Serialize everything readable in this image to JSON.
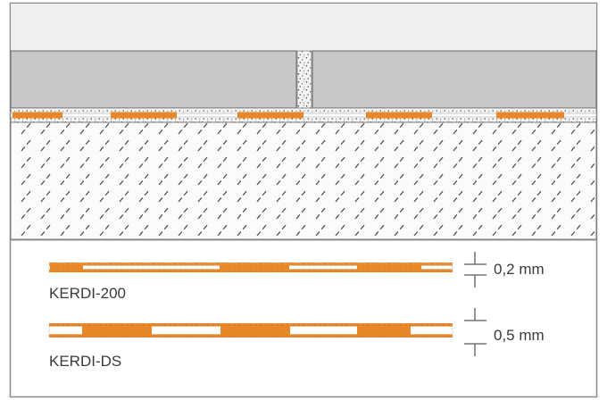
{
  "colors": {
    "frame": "#8a8a8a",
    "background_top": "#efeff1",
    "tile": "#c7c8ca",
    "grout": "#f3f3f3",
    "speckle": "#3b3b3b",
    "membrane_orange": "#e8872a",
    "substrate": "#fbfbfb",
    "hatch": "#4f4f4f",
    "legend_background": "#ffffff"
  },
  "icons": [
    "thickness-dimension-icon"
  ],
  "products": [
    {
      "name": "KERDI-200",
      "thickness": "0,2 mm"
    },
    {
      "name": "KERDI-DS",
      "thickness": "0,5 mm"
    }
  ]
}
